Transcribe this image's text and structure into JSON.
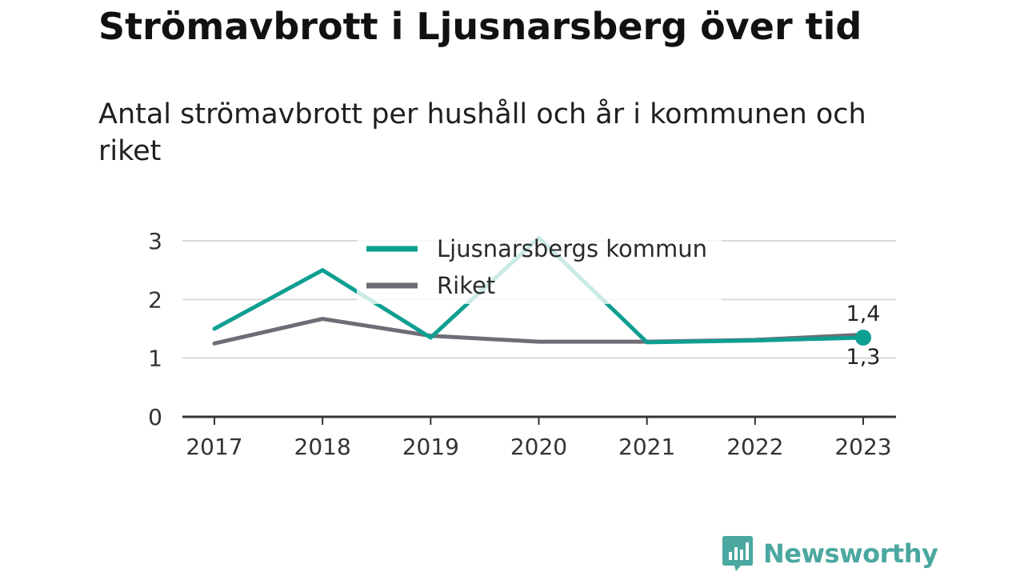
{
  "title": "Strömavbrott i Ljusnarsberg över tid",
  "subtitle": "Antal strömavbrott per hushåll och år i kommunen och riket",
  "brand": "Newsworthy",
  "colors": {
    "kommun": "#0e9f91",
    "riket": "#6e6d75",
    "grid": "#d9d9d9",
    "axis": "#333333",
    "brand": "#4aa8a0"
  },
  "chart_data": {
    "type": "line",
    "x": [
      "2017",
      "2018",
      "2019",
      "2020",
      "2021",
      "2022",
      "2023"
    ],
    "yticks": [
      "0",
      "1",
      "2",
      "3"
    ],
    "ylim": [
      0,
      3
    ],
    "grid": true,
    "legend_position": "top-center",
    "series": [
      {
        "name": "Ljusnarsbergs kommun",
        "values": [
          1.5,
          2.5,
          1.35,
          3.05,
          1.27,
          1.3,
          1.35
        ],
        "end_label": "1,3"
      },
      {
        "name": "Riket",
        "values": [
          1.25,
          1.67,
          1.38,
          1.28,
          1.28,
          1.31,
          1.4
        ],
        "end_label": "1,4"
      }
    ]
  }
}
